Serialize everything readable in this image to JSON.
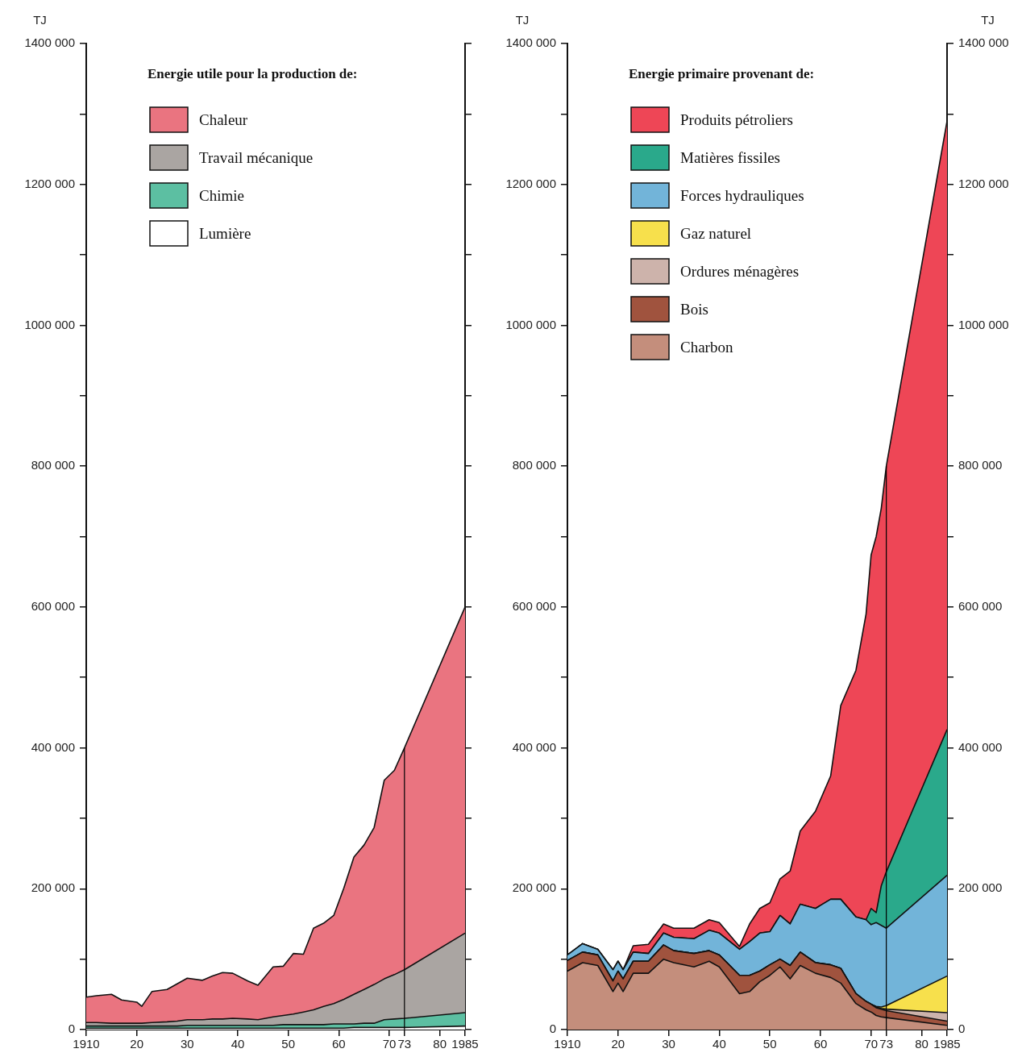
{
  "chart_data": [
    {
      "type": "area",
      "stacked": true,
      "ylabel": "TJ",
      "legend_title": "Energie utile pour la production de:",
      "legend": "top left",
      "grid": false,
      "x": [
        1910,
        1912,
        1915,
        1917,
        1920,
        1921,
        1923,
        1926,
        1928,
        1930,
        1933,
        1935,
        1937,
        1939,
        1942,
        1944,
        1947,
        1949,
        1951,
        1953,
        1955,
        1957,
        1959,
        1961,
        1963,
        1965,
        1967,
        1969,
        1971,
        1973,
        1985
      ],
      "xlim": [
        1910,
        1985
      ],
      "xticks": [
        {
          "value": 1910,
          "label": "1910"
        },
        {
          "value": 1920,
          "label": "20"
        },
        {
          "value": 1930,
          "label": "30"
        },
        {
          "value": 1940,
          "label": "40"
        },
        {
          "value": 1950,
          "label": "50"
        },
        {
          "value": 1960,
          "label": "60"
        },
        {
          "value": 1970,
          "label": "70"
        },
        {
          "value": 1973,
          "label": "73"
        },
        {
          "value": 1980,
          "label": "80"
        },
        {
          "value": 1985,
          "label": "1985"
        }
      ],
      "ylim": [
        0,
        1400000
      ],
      "yticks": [
        0,
        {
          "value": 100000,
          "label": null
        },
        {
          "value": 200000,
          "label": "200 000"
        },
        {
          "value": 300000,
          "label": null
        },
        {
          "value": 400000,
          "label": "400 000"
        },
        {
          "value": 500000,
          "label": null
        },
        {
          "value": 600000,
          "label": "600 000"
        },
        {
          "value": 700000,
          "label": null
        },
        {
          "value": 800000,
          "label": "800 000"
        },
        {
          "value": 900000,
          "label": null
        },
        {
          "value": 1000000,
          "label": "1000 000"
        },
        {
          "value": 1100000,
          "label": null
        },
        {
          "value": 1200000,
          "label": "1200 000"
        },
        {
          "value": 1300000,
          "label": null
        },
        {
          "value": 1400000,
          "label": "1400 000"
        }
      ],
      "ref_lines": [
        {
          "axis": "x",
          "value": 1973,
          "color": "#000000"
        }
      ],
      "series": [
        {
          "name": "Lumière",
          "color": "#ffffff",
          "values": [
            2000,
            2000,
            2000,
            2000,
            2000,
            2000,
            2000,
            2000,
            2000,
            2000,
            2000,
            2000,
            2000,
            2000,
            2000,
            2000,
            2000,
            2000,
            2000,
            2000,
            2000,
            2000,
            2000,
            2000,
            3000,
            3000,
            3000,
            3000,
            3000,
            3000,
            5000
          ]
        },
        {
          "name": "Chimie",
          "color": "#5cbfa2",
          "values": [
            3000,
            3000,
            3000,
            3000,
            3000,
            3000,
            3000,
            3000,
            3000,
            4000,
            4000,
            4000,
            4000,
            4000,
            4000,
            4000,
            4000,
            5000,
            5000,
            5000,
            5000,
            5000,
            6000,
            6000,
            5000,
            6000,
            6000,
            11000,
            12000,
            13000,
            19000
          ]
        },
        {
          "name": "Travail mécanique",
          "color": "#aaa5a2",
          "values": [
            5000,
            5000,
            4000,
            4000,
            4000,
            4000,
            5000,
            6000,
            7000,
            8000,
            8000,
            9000,
            9000,
            10000,
            9000,
            8000,
            12000,
            13000,
            15000,
            18000,
            21000,
            26000,
            29000,
            35000,
            42000,
            48000,
            55000,
            58000,
            63000,
            69000,
            113000
          ]
        },
        {
          "name": "Chaleur",
          "color": "#ea7480",
          "values": [
            36000,
            38000,
            41000,
            33000,
            30000,
            24000,
            44000,
            46000,
            53000,
            59000,
            56000,
            61000,
            66000,
            64000,
            54000,
            49000,
            71000,
            70000,
            86000,
            82000,
            116000,
            118000,
            125000,
            158000,
            195000,
            205000,
            223000,
            282000,
            290000,
            315000,
            463000
          ]
        }
      ]
    },
    {
      "type": "area",
      "stacked": true,
      "ylabel": "TJ",
      "y2label": "TJ",
      "legend_title": "Energie primaire provenant de:",
      "legend": "top left",
      "grid": false,
      "x": [
        1910,
        1913,
        1916,
        1919,
        1920,
        1921,
        1923,
        1926,
        1929,
        1931,
        1935,
        1938,
        1940,
        1944,
        1946,
        1948,
        1950,
        1952,
        1954,
        1956,
        1959,
        1962,
        1964,
        1967,
        1969,
        1970,
        1971,
        1972,
        1973,
        1985
      ],
      "xlim": [
        1910,
        1985
      ],
      "xticks": [
        {
          "value": 1910,
          "label": "1910"
        },
        {
          "value": 1920,
          "label": "20"
        },
        {
          "value": 1930,
          "label": "30"
        },
        {
          "value": 1940,
          "label": "40"
        },
        {
          "value": 1950,
          "label": "50"
        },
        {
          "value": 1960,
          "label": "60"
        },
        {
          "value": 1970,
          "label": "70"
        },
        {
          "value": 1973,
          "label": "73"
        },
        {
          "value": 1980,
          "label": "80"
        },
        {
          "value": 1985,
          "label": "1985"
        }
      ],
      "ylim": [
        0,
        1400000
      ],
      "yticks": [
        0,
        {
          "value": 100000,
          "label": null
        },
        {
          "value": 200000,
          "label": "200 000"
        },
        {
          "value": 300000,
          "label": null
        },
        {
          "value": 400000,
          "label": "400 000"
        },
        {
          "value": 500000,
          "label": null
        },
        {
          "value": 600000,
          "label": "600 000"
        },
        {
          "value": 700000,
          "label": null
        },
        {
          "value": 800000,
          "label": "800 000"
        },
        {
          "value": 900000,
          "label": null
        },
        {
          "value": 1000000,
          "label": "1000 000"
        },
        {
          "value": 1100000,
          "label": null
        },
        {
          "value": 1200000,
          "label": "1200 000"
        },
        {
          "value": 1300000,
          "label": null
        },
        {
          "value": 1400000,
          "label": "1400 000"
        }
      ],
      "y2lim": [
        0,
        1400000
      ],
      "y2ticks": [
        0,
        {
          "value": 100000,
          "label": null
        },
        {
          "value": 200000,
          "label": "200 000"
        },
        {
          "value": 300000,
          "label": null
        },
        {
          "value": 400000,
          "label": "400 000"
        },
        {
          "value": 500000,
          "label": null
        },
        {
          "value": 600000,
          "label": "600 000"
        },
        {
          "value": 700000,
          "label": null
        },
        {
          "value": 800000,
          "label": "800 000"
        },
        {
          "value": 900000,
          "label": null
        },
        {
          "value": 1000000,
          "label": "1000 000"
        },
        {
          "value": 1100000,
          "label": null
        },
        {
          "value": 1200000,
          "label": "1200 000"
        },
        {
          "value": 1300000,
          "label": null
        },
        {
          "value": 1400000,
          "label": "1400 000"
        }
      ],
      "ref_lines": [
        {
          "axis": "x",
          "value": 1973,
          "color": "#000000"
        }
      ],
      "series": [
        {
          "name": "Charbon",
          "color": "#c48e7c",
          "values": [
            83000,
            95000,
            91000,
            54000,
            66000,
            54000,
            80000,
            80000,
            100000,
            95000,
            89000,
            97000,
            89000,
            51000,
            54000,
            68000,
            77000,
            89000,
            72000,
            91000,
            80000,
            74000,
            66000,
            37000,
            28000,
            25000,
            20000,
            18000,
            17000,
            6000
          ]
        },
        {
          "name": "Bois",
          "color": "#a0533e",
          "values": [
            15000,
            15000,
            15000,
            15000,
            17000,
            18000,
            17000,
            17000,
            20000,
            17000,
            19000,
            15000,
            17000,
            26000,
            23000,
            15000,
            15000,
            11000,
            19000,
            19000,
            15000,
            18000,
            21000,
            14000,
            12000,
            11000,
            11000,
            11000,
            10000,
            6000
          ]
        },
        {
          "name": "Ordures ménagères",
          "color": "#cdb3ab",
          "values": [
            0,
            0,
            0,
            0,
            0,
            0,
            0,
            0,
            0,
            0,
            0,
            0,
            0,
            0,
            0,
            0,
            0,
            0,
            0,
            0,
            0,
            0,
            0,
            0,
            0,
            0,
            1000,
            1000,
            2000,
            12000
          ]
        },
        {
          "name": "Gaz naturel",
          "color": "#f7e04c",
          "values": [
            0,
            0,
            0,
            0,
            0,
            0,
            0,
            0,
            0,
            0,
            0,
            0,
            0,
            0,
            0,
            0,
            0,
            0,
            0,
            0,
            0,
            0,
            0,
            0,
            0,
            0,
            1000,
            2000,
            5000,
            52000
          ]
        },
        {
          "name": "Forces hydrauliques",
          "color": "#72b4d9",
          "values": [
            8000,
            12000,
            8000,
            16000,
            14000,
            13000,
            13000,
            11000,
            17000,
            19000,
            21000,
            29000,
            31000,
            37000,
            48000,
            54000,
            47000,
            62000,
            59000,
            68000,
            77000,
            93000,
            98000,
            109000,
            116000,
            113000,
            119000,
            116000,
            110000,
            143000
          ]
        },
        {
          "name": "Matières fissiles",
          "color": "#2aa98b",
          "values": [
            0,
            0,
            0,
            0,
            0,
            0,
            0,
            0,
            0,
            0,
            0,
            0,
            0,
            0,
            0,
            0,
            0,
            0,
            0,
            0,
            0,
            0,
            0,
            0,
            0,
            23000,
            14000,
            56000,
            80000,
            207000
          ]
        },
        {
          "name": "Produits pétroliers",
          "color": "#ee4656",
          "values": [
            0,
            0,
            0,
            0,
            0,
            0,
            9000,
            13000,
            13000,
            13000,
            15000,
            15000,
            15000,
            4000,
            25000,
            35000,
            41000,
            52000,
            75000,
            104000,
            138000,
            175000,
            275000,
            350000,
            434000,
            502000,
            534000,
            536000,
            576000,
            864000
          ]
        }
      ]
    }
  ]
}
